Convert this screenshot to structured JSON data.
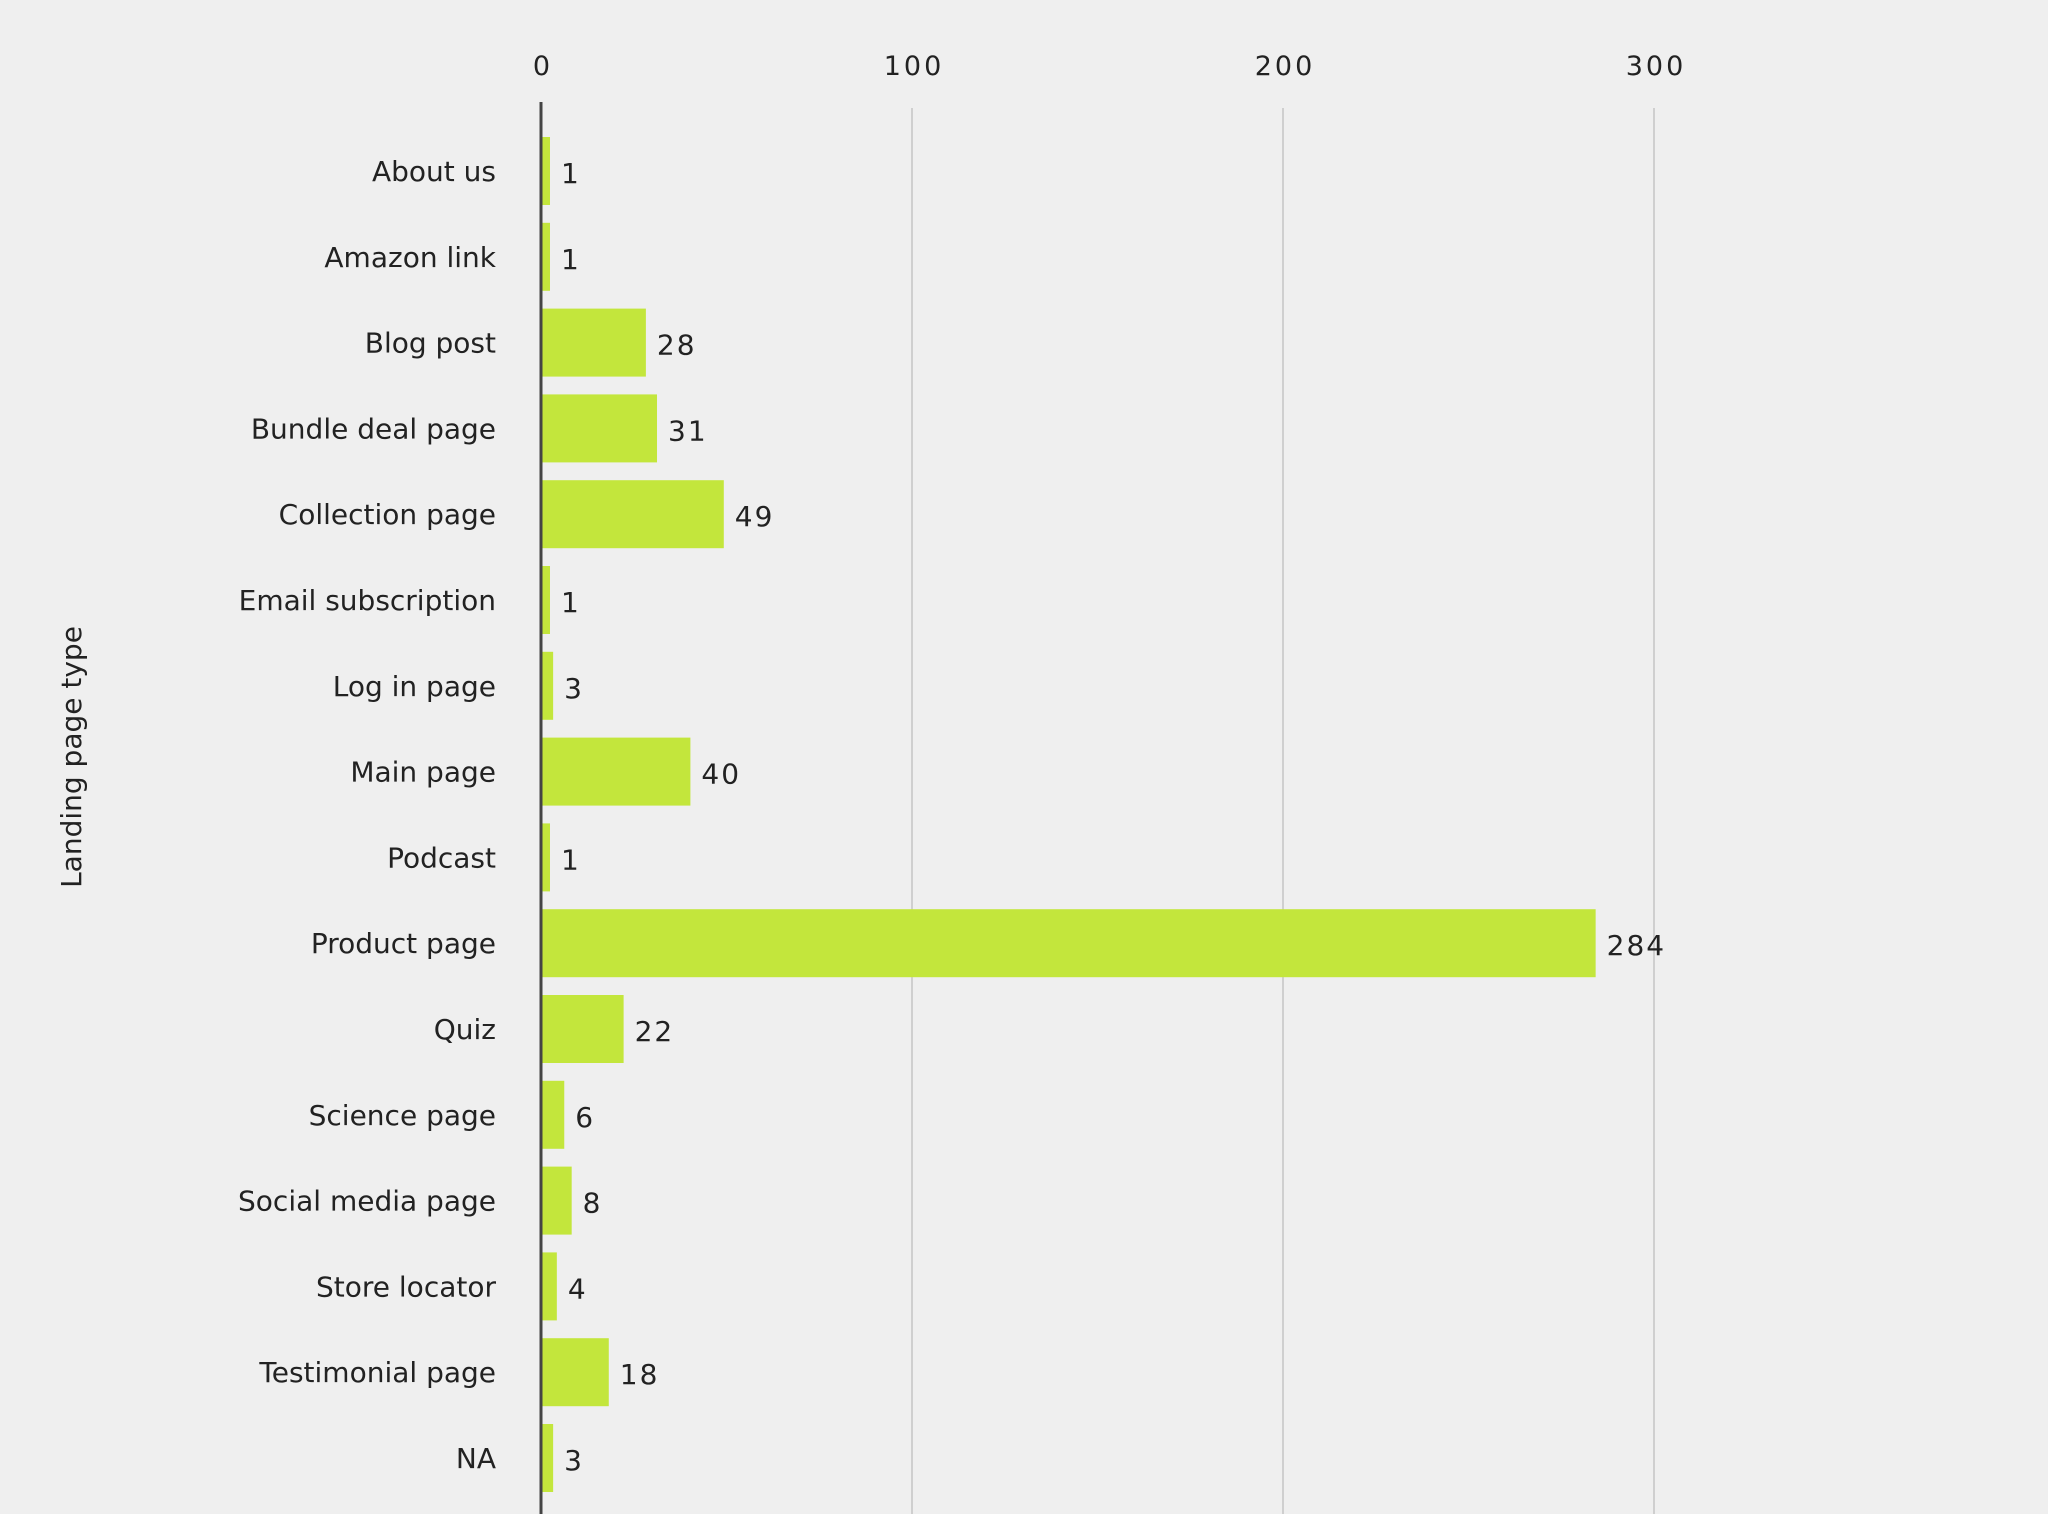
{
  "chart_data": {
    "type": "bar",
    "orientation": "horizontal",
    "title": "",
    "xlabel": "",
    "ylabel": "Landing page type",
    "xlim": [
      0,
      340
    ],
    "xticks": [
      0,
      100,
      200,
      300
    ],
    "xtick_labels": [
      "0",
      "100",
      "200",
      "300"
    ],
    "x_axis_position": "top",
    "grid": true,
    "categories": [
      "About us",
      "Amazon link",
      "Blog post",
      "Bundle deal page",
      "Collection page",
      "Email subscription",
      "Log in page",
      "Main page",
      "Podcast",
      "Product page",
      "Quiz",
      "Science page",
      "Social media page",
      "Store locator",
      "Testimonial page",
      "NA"
    ],
    "values": [
      1,
      1,
      28,
      31,
      49,
      1,
      3,
      40,
      1,
      284,
      22,
      6,
      8,
      4,
      18,
      3
    ],
    "data_labels": [
      "1",
      "1",
      "28",
      "31",
      "49",
      "1",
      "3",
      "40",
      "1",
      "284",
      "22",
      "6",
      "8",
      "4",
      "18",
      "3"
    ],
    "colors": {
      "bar": "#c3e63c",
      "grid": "#cfcfcf",
      "axis": "#444444",
      "background": "#efefef"
    }
  }
}
